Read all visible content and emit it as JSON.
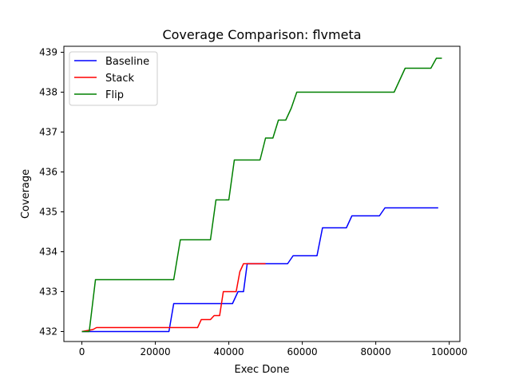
{
  "chart_data": {
    "type": "line",
    "title": "Coverage Comparison: flvmeta",
    "xlabel": "Exec Done",
    "ylabel": "Coverage",
    "xlim": [
      -4900,
      102900
    ],
    "ylim": [
      431.75,
      439.15
    ],
    "xticks": [
      0,
      20000,
      40000,
      60000,
      80000,
      100000
    ],
    "yticks": [
      432,
      433,
      434,
      435,
      436,
      437,
      438,
      439
    ],
    "grid": false,
    "legend_position": "top-left",
    "series": [
      {
        "name": "Baseline",
        "color": "#0000ff",
        "points": [
          [
            0,
            432.0
          ],
          [
            23700,
            432.0
          ],
          [
            25000,
            432.7
          ],
          [
            36000,
            432.7
          ],
          [
            41000,
            432.7
          ],
          [
            42500,
            433.0
          ],
          [
            44000,
            433.0
          ],
          [
            45000,
            433.7
          ],
          [
            51000,
            433.7
          ],
          [
            56000,
            433.7
          ],
          [
            57500,
            433.9
          ],
          [
            64000,
            433.9
          ],
          [
            65500,
            434.6
          ],
          [
            72000,
            434.6
          ],
          [
            73500,
            434.9
          ],
          [
            81000,
            434.9
          ],
          [
            82500,
            435.1
          ],
          [
            97000,
            435.1
          ]
        ]
      },
      {
        "name": "Stack",
        "color": "#ff0000",
        "points": [
          [
            0,
            432.0
          ],
          [
            3000,
            432.05
          ],
          [
            4000,
            432.1
          ],
          [
            26000,
            432.1
          ],
          [
            31500,
            432.1
          ],
          [
            32500,
            432.3
          ],
          [
            35000,
            432.3
          ],
          [
            36000,
            432.4
          ],
          [
            37500,
            432.4
          ],
          [
            38500,
            433.0
          ],
          [
            42000,
            433.0
          ],
          [
            43000,
            433.5
          ],
          [
            44000,
            433.7
          ],
          [
            50000,
            433.7
          ]
        ]
      },
      {
        "name": "Flip",
        "color": "#008000",
        "points": [
          [
            0,
            432.0
          ],
          [
            2000,
            432.0
          ],
          [
            3700,
            433.3
          ],
          [
            25000,
            433.3
          ],
          [
            26800,
            434.3
          ],
          [
            35000,
            434.3
          ],
          [
            36500,
            435.3
          ],
          [
            40000,
            435.3
          ],
          [
            41500,
            436.3
          ],
          [
            48500,
            436.3
          ],
          [
            50000,
            436.85
          ],
          [
            52000,
            436.85
          ],
          [
            53500,
            437.3
          ],
          [
            55500,
            437.3
          ],
          [
            57000,
            437.6
          ],
          [
            58500,
            438.0
          ],
          [
            85000,
            438.0
          ],
          [
            88000,
            438.6
          ],
          [
            95000,
            438.6
          ],
          [
            96500,
            438.85
          ],
          [
            98000,
            438.85
          ]
        ]
      }
    ]
  }
}
